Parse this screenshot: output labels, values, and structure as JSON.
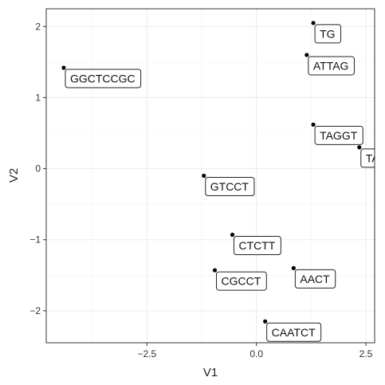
{
  "chart_data": {
    "type": "scatter",
    "title": "",
    "xlabel": "V1",
    "ylabel": "V2",
    "xlim": [
      -4.8,
      2.7
    ],
    "ylim": [
      -2.45,
      2.25
    ],
    "xticks": [
      -2.5,
      0.0,
      2.5
    ],
    "xtick_labels": [
      "−2.5",
      "0.0",
      "2.5"
    ],
    "yticks": [
      -2,
      -1,
      0,
      1,
      2
    ],
    "ytick_labels": [
      "−2",
      "−1",
      "0",
      "1",
      "2"
    ],
    "grid": true,
    "points": [
      {
        "label": "TG",
        "x": 1.3,
        "y": 2.05
      },
      {
        "label": "ATTAG",
        "x": 1.15,
        "y": 1.6
      },
      {
        "label": "GGCTCCGC",
        "x": -4.4,
        "y": 1.42
      },
      {
        "label": "TAGGT",
        "x": 1.3,
        "y": 0.62
      },
      {
        "label": "TA",
        "x": 2.35,
        "y": 0.3
      },
      {
        "label": "GTCCT",
        "x": -1.2,
        "y": -0.1
      },
      {
        "label": "CTCTT",
        "x": -0.55,
        "y": -0.93
      },
      {
        "label": "AACT",
        "x": 0.85,
        "y": -1.4
      },
      {
        "label": "CGCCT",
        "x": -0.95,
        "y": -1.43
      },
      {
        "label": "CAATCT",
        "x": 0.2,
        "y": -2.15
      }
    ]
  }
}
